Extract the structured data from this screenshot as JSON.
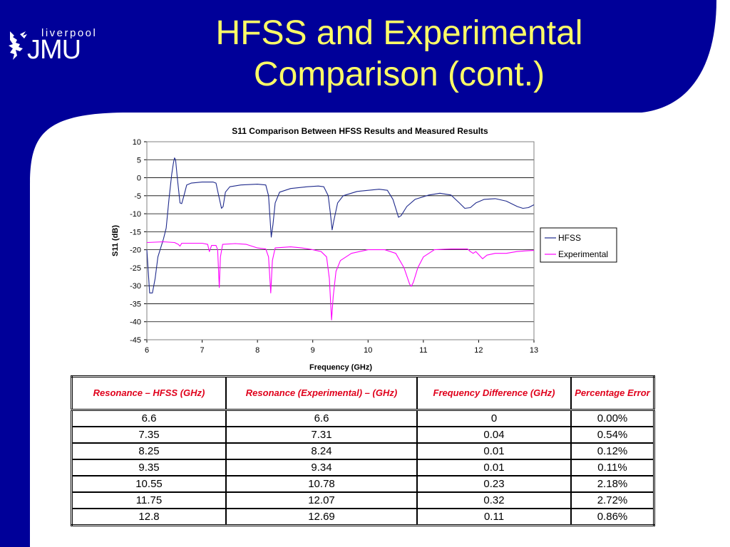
{
  "slide": {
    "title_line1": "HFSS and Experimental",
    "title_line2": "Comparison (cont.)",
    "colors": {
      "background": "#000099",
      "title": "#ffff66",
      "header_text": "#e0001b"
    }
  },
  "logo": {
    "top": "liverpool",
    "main": "JMU",
    "icon": "liver-bird-icon"
  },
  "chart_data": {
    "type": "line",
    "title": "S11 Comparison Between HFSS Results and Measured Results",
    "xlabel": "Frequency (GHz)",
    "ylabel": "S11 (dB)",
    "xlim": [
      6,
      13
    ],
    "ylim": [
      -45,
      10
    ],
    "xticks": [
      6,
      7,
      8,
      9,
      10,
      11,
      12,
      13
    ],
    "yticks": [
      10,
      5,
      0,
      -5,
      -10,
      -15,
      -20,
      -25,
      -30,
      -35,
      -40,
      -45
    ],
    "grid": "horizontal",
    "legend": "right",
    "series": [
      {
        "name": "HFSS",
        "color": "#1f2a8c",
        "points": [
          [
            6.0,
            -20
          ],
          [
            6.05,
            -32
          ],
          [
            6.1,
            -32
          ],
          [
            6.15,
            -28
          ],
          [
            6.2,
            -22
          ],
          [
            6.3,
            -17
          ],
          [
            6.35,
            -14
          ],
          [
            6.4,
            -6
          ],
          [
            6.45,
            1
          ],
          [
            6.48,
            4
          ],
          [
            6.5,
            5.5
          ],
          [
            6.52,
            5
          ],
          [
            6.55,
            0
          ],
          [
            6.6,
            -7
          ],
          [
            6.63,
            -7.2
          ],
          [
            6.67,
            -5
          ],
          [
            6.72,
            -2
          ],
          [
            6.8,
            -1.5
          ],
          [
            7.0,
            -1.2
          ],
          [
            7.2,
            -1.2
          ],
          [
            7.25,
            -1.5
          ],
          [
            7.3,
            -5
          ],
          [
            7.35,
            -8.5
          ],
          [
            7.38,
            -8
          ],
          [
            7.42,
            -4
          ],
          [
            7.5,
            -2.5
          ],
          [
            7.7,
            -2
          ],
          [
            8.0,
            -1.8
          ],
          [
            8.15,
            -2
          ],
          [
            8.2,
            -5
          ],
          [
            8.25,
            -16.5
          ],
          [
            8.28,
            -13
          ],
          [
            8.32,
            -7
          ],
          [
            8.4,
            -4
          ],
          [
            8.6,
            -3
          ],
          [
            8.9,
            -2.5
          ],
          [
            9.1,
            -2.3
          ],
          [
            9.2,
            -2.5
          ],
          [
            9.28,
            -5
          ],
          [
            9.32,
            -10
          ],
          [
            9.35,
            -14.5
          ],
          [
            9.38,
            -12
          ],
          [
            9.45,
            -7
          ],
          [
            9.55,
            -5
          ],
          [
            9.8,
            -3.8
          ],
          [
            10.2,
            -3.2
          ],
          [
            10.35,
            -3.5
          ],
          [
            10.45,
            -6
          ],
          [
            10.55,
            -11
          ],
          [
            10.6,
            -10.5
          ],
          [
            10.7,
            -8
          ],
          [
            10.85,
            -6
          ],
          [
            11.1,
            -4.8
          ],
          [
            11.3,
            -4.3
          ],
          [
            11.5,
            -4.8
          ],
          [
            11.65,
            -7
          ],
          [
            11.75,
            -8.5
          ],
          [
            11.85,
            -8.3
          ],
          [
            11.95,
            -7
          ],
          [
            12.1,
            -6
          ],
          [
            12.3,
            -5.8
          ],
          [
            12.5,
            -6.5
          ],
          [
            12.7,
            -8
          ],
          [
            12.8,
            -8.5
          ],
          [
            12.9,
            -8.3
          ],
          [
            13.0,
            -7.5
          ]
        ]
      },
      {
        "name": "Experimental",
        "color": "#ff00ff",
        "points": [
          [
            6.0,
            -18
          ],
          [
            6.3,
            -17.8
          ],
          [
            6.5,
            -18
          ],
          [
            6.57,
            -18.5
          ],
          [
            6.6,
            -19
          ],
          [
            6.63,
            -18.2
          ],
          [
            7.0,
            -18.2
          ],
          [
            7.1,
            -18.5
          ],
          [
            7.13,
            -20.5
          ],
          [
            7.17,
            -18.8
          ],
          [
            7.25,
            -18.8
          ],
          [
            7.28,
            -20
          ],
          [
            7.31,
            -30.5
          ],
          [
            7.33,
            -22
          ],
          [
            7.37,
            -18.5
          ],
          [
            7.6,
            -18.3
          ],
          [
            7.8,
            -18.5
          ],
          [
            8.0,
            -19.5
          ],
          [
            8.15,
            -19.8
          ],
          [
            8.2,
            -22
          ],
          [
            8.24,
            -32
          ],
          [
            8.27,
            -23
          ],
          [
            8.32,
            -19.5
          ],
          [
            8.6,
            -19.2
          ],
          [
            8.8,
            -19.5
          ],
          [
            9.0,
            -20
          ],
          [
            9.15,
            -20.5
          ],
          [
            9.25,
            -22
          ],
          [
            9.3,
            -28
          ],
          [
            9.34,
            -39.5
          ],
          [
            9.37,
            -33
          ],
          [
            9.42,
            -26
          ],
          [
            9.5,
            -23
          ],
          [
            9.7,
            -21
          ],
          [
            10.0,
            -20
          ],
          [
            10.3,
            -20
          ],
          [
            10.5,
            -21
          ],
          [
            10.65,
            -25
          ],
          [
            10.75,
            -29.5
          ],
          [
            10.78,
            -30.2
          ],
          [
            10.82,
            -29
          ],
          [
            10.9,
            -25
          ],
          [
            11.0,
            -22
          ],
          [
            11.2,
            -20
          ],
          [
            11.5,
            -19.8
          ],
          [
            11.8,
            -19.8
          ],
          [
            11.85,
            -20.5
          ],
          [
            11.9,
            -21
          ],
          [
            11.95,
            -20.5
          ],
          [
            12.07,
            -22.5
          ],
          [
            12.15,
            -21.5
          ],
          [
            12.3,
            -21
          ],
          [
            12.5,
            -21
          ],
          [
            12.69,
            -20.5
          ],
          [
            12.85,
            -20.3
          ],
          [
            13.0,
            -20.2
          ]
        ]
      }
    ]
  },
  "table": {
    "headers": [
      "Resonance – HFSS (GHz)",
      "Resonance (Experimental) – (GHz)",
      "Frequency Difference (GHz)",
      "Percentage Error"
    ],
    "rows": [
      [
        "6.6",
        "6.6",
        "0",
        "0.00%"
      ],
      [
        "7.35",
        "7.31",
        "0.04",
        "0.54%"
      ],
      [
        "8.25",
        "8.24",
        "0.01",
        "0.12%"
      ],
      [
        "9.35",
        "9.34",
        "0.01",
        "0.11%"
      ],
      [
        "10.55",
        "10.78",
        "0.23",
        "2.18%"
      ],
      [
        "11.75",
        "12.07",
        "0.32",
        "2.72%"
      ],
      [
        "12.8",
        "12.69",
        "0.11",
        "0.86%"
      ]
    ]
  }
}
